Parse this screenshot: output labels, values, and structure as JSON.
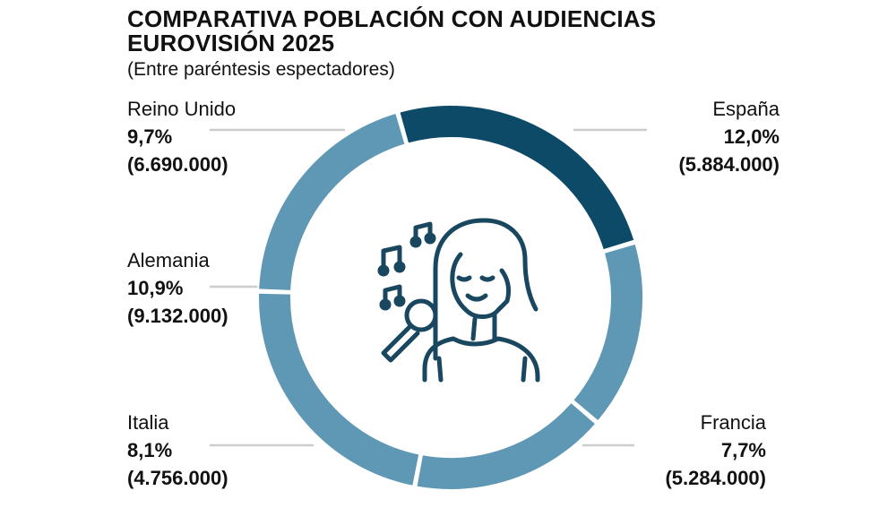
{
  "title": "COMPARATIVA POBLACIÓN CON AUDIENCIAS EUROVISIÓN 2025",
  "subtitle": "(Entre paréntesis espectadores)",
  "colors": {
    "highlight": "#0d4a68",
    "default": "#5f98b4",
    "leader": "#cccccc",
    "icon": "#18475f"
  },
  "icon": "singer-with-microphone-icon",
  "chart_data": {
    "type": "pie",
    "title": "COMPARATIVA POBLACIÓN CON AUDIENCIAS EUROVISIÓN 2025",
    "subtitle": "(Entre paréntesis espectadores)",
    "categories": [
      "España",
      "Francia",
      "Italia",
      "Alemania",
      "Reino Unido"
    ],
    "values": [
      12.0,
      7.7,
      8.1,
      10.9,
      9.7
    ],
    "series": [
      {
        "name": "España",
        "value": 12.0,
        "value_label": "12,0%",
        "viewers": "(5.884.000)",
        "highlight": true
      },
      {
        "name": "Francia",
        "value": 7.7,
        "value_label": "7,7%",
        "viewers": "(5.284.000)",
        "highlight": false
      },
      {
        "name": "Italia",
        "value": 8.1,
        "value_label": "8,1%",
        "viewers": "(4.756.000)",
        "highlight": false
      },
      {
        "name": "Alemania",
        "value": 10.9,
        "value_label": "10,9%",
        "viewers": "(9.132.000)",
        "highlight": false
      },
      {
        "name": "Reino Unido",
        "value": 9.7,
        "value_label": "9,7%",
        "viewers": "(6.690.000)",
        "highlight": false
      }
    ]
  }
}
